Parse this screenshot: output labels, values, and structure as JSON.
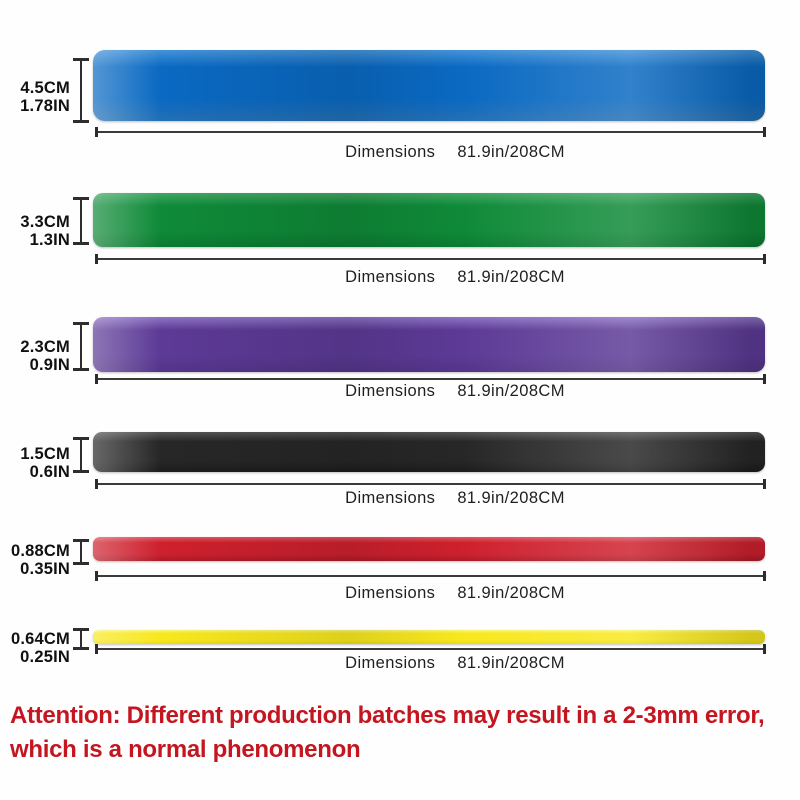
{
  "page": {
    "background": "#fefefe"
  },
  "bands": [
    {
      "color_name": "blue",
      "hex": "#0a69c2",
      "hex_light": "#4493d8",
      "hex_dark": "#2470b4",
      "size_cm": "4.5CM",
      "size_in": "1.78IN",
      "dimensions_label": "Dimensions",
      "dimensions_value": "81.9in/208CM"
    },
    {
      "color_name": "green",
      "hex": "#0f8a38",
      "hex_light": "#3fa764",
      "hex_dark": "#0b7a31",
      "size_cm": "3.3CM",
      "size_in": "1.3IN",
      "dimensions_label": "Dimensions",
      "dimensions_value": "81.9in/208CM"
    },
    {
      "color_name": "purple",
      "hex": "#5c3a96",
      "hex_light": "#8f74c4",
      "hex_dark": "#533489",
      "size_cm": "2.3CM",
      "size_in": "0.9IN",
      "dimensions_label": "Dimensions",
      "dimensions_value": "81.9in/208CM"
    },
    {
      "color_name": "black",
      "hex": "#272727",
      "hex_light": "#555555",
      "hex_dark": "#1c1c1c",
      "size_cm": "1.5CM",
      "size_in": "0.6IN",
      "dimensions_label": "Dimensions",
      "dimensions_value": "81.9in/208CM"
    },
    {
      "color_name": "red",
      "hex": "#ce202e",
      "hex_light": "#e25762",
      "hex_dark": "#ab1b26",
      "size_cm": "0.88CM",
      "size_in": "0.35IN",
      "dimensions_label": "Dimensions",
      "dimensions_value": "81.9in/208CM"
    },
    {
      "color_name": "yellow",
      "hex": "#f7e81e",
      "hex_light": "#fcf47c",
      "hex_dark": "#ecd915",
      "size_cm": "0.64CM",
      "size_in": "0.25IN",
      "dimensions_label": "Dimensions",
      "dimensions_value": "81.9in/208CM"
    }
  ],
  "attention": {
    "line1": "Attention: Different production batches may result in a 2-3mm error,",
    "line2": "which is a normal phenomenon",
    "color": "#c41620"
  },
  "annotation_color": "#2e2e2e"
}
